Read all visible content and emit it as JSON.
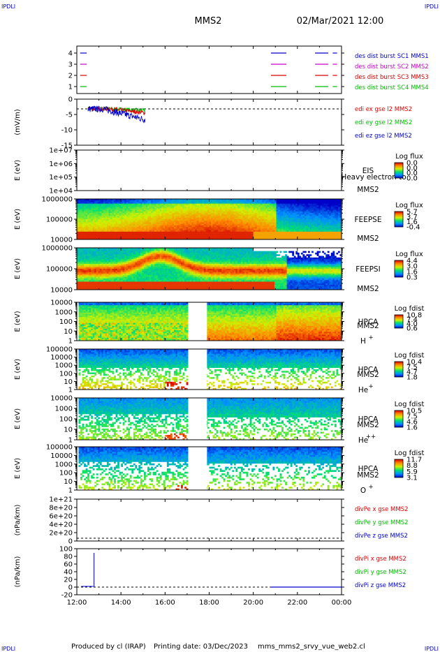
{
  "header": {
    "corner_label": "IPDLI",
    "title": "MMS2",
    "datetime": "02/Mar/2021 12:00"
  },
  "footer": {
    "produced_by": "Produced by cl (IRAP)",
    "printing_date": "Printing date: 03/Dec/2023",
    "script_name": "mms_mms2_srvy_vue_web2.cl"
  },
  "time_axis": {
    "ticks": [
      "12:00",
      "14:00",
      "16:00",
      "18:00",
      "20:00",
      "22:00",
      "00:00"
    ]
  },
  "colors": {
    "red": "#dd0000",
    "green": "#00bb00",
    "blue": "#0000cc",
    "magenta": "#cc00cc",
    "dashed": "#000000"
  },
  "chart_data": [
    {
      "id": "burst",
      "type": "line",
      "ylabel": "",
      "yticks": [
        "1",
        "2",
        "3",
        "4"
      ],
      "series": [
        {
          "name": "des dist burst SC1 MMS1",
          "color": "#0000cc",
          "level": 4
        },
        {
          "name": "des dist burst SC2 MMS2",
          "color": "#cc00cc",
          "level": 3
        },
        {
          "name": "des dist burst SC3 MMS3",
          "color": "#dd0000",
          "level": 2
        },
        {
          "name": "des dist burst SC4 MMS4",
          "color": "#00bb00",
          "level": 1
        }
      ]
    },
    {
      "id": "edi",
      "type": "line",
      "ylabel": "(mV/m)",
      "yticks": [
        "0",
        "-5",
        "-10",
        "-15"
      ],
      "series": [
        {
          "name": "edi ex gse l2 MMS2",
          "color": "#dd0000"
        },
        {
          "name": "edi ey gse l2 MMS2",
          "color": "#00bb00"
        },
        {
          "name": "edi ez gse l2 MMS2",
          "color": "#0000cc"
        }
      ]
    },
    {
      "id": "eis",
      "type": "heatmap",
      "ylabel": "E (eV)",
      "yticks": [
        "1e+07",
        "1e+06",
        "1e+05",
        "1e+04"
      ],
      "instrument": "EIS",
      "species": "Heavy electron to",
      "spacecraft": "MMS2",
      "colorbar_title": "Log flux",
      "colorbar_ticks": [
        "0.0",
        "0.0",
        "0.0",
        "0.0"
      ]
    },
    {
      "id": "feepse",
      "type": "heatmap",
      "ylabel": "E (eV)",
      "yticks": [
        "1000000",
        "100000",
        "10000"
      ],
      "instrument": "FEEPSE",
      "spacecraft": "MMS2",
      "colorbar_title": "Log flux",
      "colorbar_ticks": [
        "5.7",
        "3.7",
        "1.6",
        "-0.4"
      ]
    },
    {
      "id": "feepsi",
      "type": "heatmap",
      "ylabel": "E (eV)",
      "yticks": [
        "1000000",
        "100000",
        "10000"
      ],
      "instrument": "FEEPSI",
      "spacecraft": "MMS2",
      "colorbar_title": "Log flux",
      "colorbar_ticks": [
        "4.4",
        "3.0",
        "1.6",
        "0.3"
      ]
    },
    {
      "id": "hpca_h",
      "type": "heatmap",
      "ylabel": "E (eV)",
      "yticks": [
        "10000",
        "1000",
        "100",
        "10",
        "1"
      ],
      "instrument": "HPCA",
      "spacecraft": "MMS2",
      "ion": "H",
      "ion_charge": "+",
      "colorbar_title": "Log fdist",
      "colorbar_ticks": [
        "10.8",
        "7.4",
        "4.0",
        "0.6"
      ]
    },
    {
      "id": "hpca_he",
      "type": "heatmap",
      "ylabel": "E (eV)",
      "yticks": [
        "100000",
        "10000",
        "1000",
        "100",
        "10",
        "1"
      ],
      "instrument": "HPCA",
      "spacecraft": "MMS2",
      "ion": "He",
      "ion_charge": "+",
      "colorbar_title": "Log fdist",
      "colorbar_ticks": [
        "10.4",
        "7.5",
        "4.7",
        "1.8"
      ]
    },
    {
      "id": "hpca_he2",
      "type": "heatmap",
      "ylabel": "E (eV)",
      "yticks": [
        "10000",
        "1000",
        "100",
        "10",
        "1"
      ],
      "instrument": "HPCA",
      "spacecraft": "MMS2",
      "ion": "He",
      "ion_charge": "++",
      "colorbar_title": "Log fdist",
      "colorbar_ticks": [
        "10.5",
        "7.5",
        "4.6",
        "1.6"
      ]
    },
    {
      "id": "hpca_o",
      "type": "heatmap",
      "ylabel": "E (eV)",
      "yticks": [
        "100000",
        "10000",
        "1000",
        "100",
        "10",
        "1"
      ],
      "instrument": "HPCA",
      "spacecraft": "MMS2",
      "ion": "O",
      "ion_charge": "+",
      "colorbar_title": "Log fdist",
      "colorbar_ticks": [
        "11.7",
        "8.8",
        "5.9",
        "3.1"
      ]
    },
    {
      "id": "divpe",
      "type": "line",
      "ylabel": "(nPa/km)",
      "yticks": [
        "1e+21",
        "8e+20",
        "6e+20",
        "4e+20",
        "2e+20",
        "0"
      ],
      "series": [
        {
          "name": "divPe x gse MMS2",
          "color": "#dd0000"
        },
        {
          "name": "divPe y gse MMS2",
          "color": "#00bb00"
        },
        {
          "name": "divPe z gse MMS2",
          "color": "#0000cc"
        }
      ]
    },
    {
      "id": "divpi",
      "type": "line",
      "ylabel": "(nPa/km)",
      "yticks": [
        "100",
        "80",
        "60",
        "40",
        "20",
        "0",
        "-20"
      ],
      "series": [
        {
          "name": "divPi x gse MMS2",
          "color": "#dd0000"
        },
        {
          "name": "divPi y gse MMS2",
          "color": "#00bb00"
        },
        {
          "name": "divPi z gse MMS2",
          "color": "#0000cc"
        }
      ]
    }
  ]
}
